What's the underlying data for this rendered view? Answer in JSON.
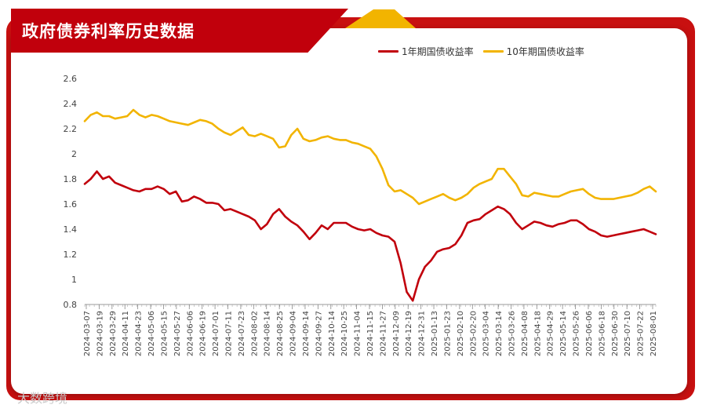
{
  "header": {
    "title": "政府债券利率历史数据"
  },
  "watermark": "大数跨境",
  "colors": {
    "series1": "#c1000c",
    "series2": "#f2b400",
    "title_bg": "#c1000c",
    "accent": "#f2b400"
  },
  "chart_data": {
    "type": "line",
    "title": "政府债券利率历史数据",
    "xlabel": "",
    "ylabel": "",
    "ylim": [
      0.8,
      2.6
    ],
    "yticks": [
      "0.8",
      "1",
      "1.2",
      "1.4",
      "1.6",
      "1.8",
      "2",
      "2.2",
      "2.4",
      "2.6"
    ],
    "grid": false,
    "legend": "top-right",
    "x_tick_labels": [
      "2024-03-07",
      "2024-03-19",
      "2024-03-29",
      "2024-04-11",
      "2024-04-23",
      "2024-05-06",
      "2024-05-15",
      "2024-05-27",
      "2024-06-06",
      "2024-06-19",
      "2024-07-01",
      "2024-07-11",
      "2024-07-23",
      "2024-08-02",
      "2024-08-14",
      "2024-08-25",
      "2024-09-04",
      "2024-09-14",
      "2024-09-27",
      "2024-10-14",
      "2024-10-25",
      "2024-11-04",
      "2024-11-15",
      "2024-11-27",
      "2024-12-09",
      "2024-12-19",
      "2024-12-31",
      "2025-01-13",
      "2025-01-23",
      "2025-02-10",
      "2025-02-20",
      "2025-03-04",
      "2025-03-14",
      "2025-03-26",
      "2025-04-08",
      "2025-04-18",
      "2025-04-29",
      "2025-05-14",
      "2025-05-26",
      "2025-06-06",
      "2025-06-18",
      "2025-06-30",
      "2025-07-10",
      "2025-07-22",
      "2025-08-01"
    ],
    "series": [
      {
        "name": "1年期国债收益率",
        "values": [
          1.76,
          1.8,
          1.86,
          1.8,
          1.82,
          1.77,
          1.75,
          1.73,
          1.71,
          1.7,
          1.72,
          1.72,
          1.74,
          1.72,
          1.68,
          1.7,
          1.62,
          1.63,
          1.66,
          1.64,
          1.61,
          1.61,
          1.6,
          1.55,
          1.56,
          1.54,
          1.52,
          1.5,
          1.47,
          1.4,
          1.44,
          1.52,
          1.56,
          1.5,
          1.46,
          1.43,
          1.38,
          1.32,
          1.37,
          1.43,
          1.4,
          1.45,
          1.45,
          1.45,
          1.42,
          1.4,
          1.39,
          1.4,
          1.37,
          1.35,
          1.34,
          1.3,
          1.13,
          0.9,
          0.83,
          1.0,
          1.1,
          1.15,
          1.22,
          1.24,
          1.25,
          1.28,
          1.35,
          1.45,
          1.47,
          1.48,
          1.52,
          1.55,
          1.58,
          1.56,
          1.52,
          1.45,
          1.4,
          1.43,
          1.46,
          1.45,
          1.43,
          1.42,
          1.44,
          1.45,
          1.47,
          1.47,
          1.44,
          1.4,
          1.38,
          1.35,
          1.34,
          1.35,
          1.36,
          1.37,
          1.38,
          1.39,
          1.4,
          1.38,
          1.36
        ]
      },
      {
        "name": "10年期国债收益率",
        "values": [
          2.26,
          2.31,
          2.33,
          2.3,
          2.3,
          2.28,
          2.29,
          2.3,
          2.35,
          2.31,
          2.29,
          2.31,
          2.3,
          2.28,
          2.26,
          2.25,
          2.24,
          2.23,
          2.25,
          2.27,
          2.26,
          2.24,
          2.2,
          2.17,
          2.15,
          2.18,
          2.21,
          2.15,
          2.14,
          2.16,
          2.14,
          2.12,
          2.05,
          2.06,
          2.15,
          2.2,
          2.12,
          2.1,
          2.11,
          2.13,
          2.14,
          2.12,
          2.11,
          2.11,
          2.09,
          2.08,
          2.06,
          2.04,
          1.98,
          1.88,
          1.75,
          1.7,
          1.71,
          1.68,
          1.65,
          1.6,
          1.62,
          1.64,
          1.66,
          1.68,
          1.65,
          1.63,
          1.65,
          1.68,
          1.73,
          1.76,
          1.78,
          1.8,
          1.88,
          1.88,
          1.82,
          1.76,
          1.67,
          1.66,
          1.69,
          1.68,
          1.67,
          1.66,
          1.66,
          1.68,
          1.7,
          1.71,
          1.72,
          1.68,
          1.65,
          1.64,
          1.64,
          1.64,
          1.65,
          1.66,
          1.67,
          1.69,
          1.72,
          1.74,
          1.7
        ]
      }
    ]
  }
}
